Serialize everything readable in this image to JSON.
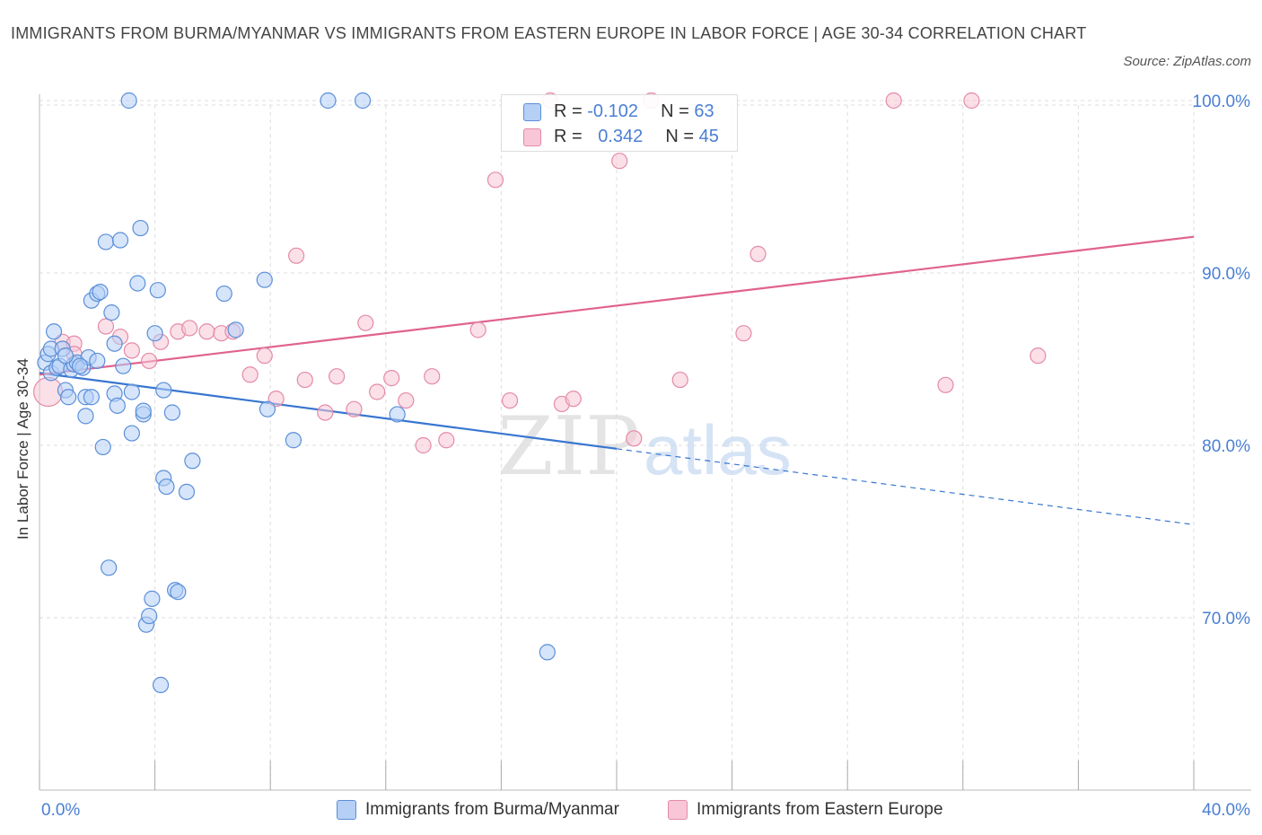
{
  "title": "IMMIGRANTS FROM BURMA/MYANMAR VS IMMIGRANTS FROM EASTERN EUROPE IN LABOR FORCE | AGE 30-34 CORRELATION CHART",
  "source": "Source: ZipAtlas.com",
  "watermark": {
    "zip": "ZIP",
    "atlas": "atlas"
  },
  "legend_top": [
    {
      "r_label": "R =",
      "r_value": "-0.102",
      "n_label": "N =",
      "n_value": "63"
    },
    {
      "r_label": "R =",
      "r_value": "0.342",
      "n_label": "N =",
      "n_value": "45"
    }
  ],
  "colors": {
    "blue_fill": "#b5cff5",
    "blue_stroke": "#5b8fd9",
    "blue_line": "#3876d0",
    "pink_fill": "#f8c6d6",
    "pink_stroke": "#e48aa8",
    "pink_line": "#e0628f",
    "axis_text": "#4a7fd4",
    "grid": "#dddddd"
  },
  "chart_data": {
    "type": "scatter",
    "title": "IMMIGRANTS FROM BURMA/MYANMAR VS IMMIGRANTS FROM EASTERN EUROPE IN LABOR FORCE | AGE 30-34 CORRELATION CHART",
    "xlabel": "",
    "ylabel": "In Labor Force | Age 30-34",
    "xlim": [
      0,
      40
    ],
    "ylim": [
      60,
      100
    ],
    "x_tick_labels": [
      "0.0%",
      "40.0%"
    ],
    "y_ticks": [
      70,
      80,
      90,
      100
    ],
    "y_tick_labels": [
      "70.0%",
      "80.0%",
      "90.0%",
      "100.0%"
    ],
    "grid": true,
    "legend_position": "bottom",
    "series": [
      {
        "name": "Immigrants from Burma/Myanmar",
        "r": -0.102,
        "n": 63,
        "trend": {
          "x0": 0,
          "y0": 84.2,
          "x1": 20,
          "y1": 79.8,
          "dash_to_x": 40,
          "dash_to_y": 75.4
        },
        "points": [
          [
            0.2,
            84.8
          ],
          [
            0.3,
            85.3
          ],
          [
            0.4,
            85.6
          ],
          [
            0.4,
            84.2
          ],
          [
            0.5,
            86.6
          ],
          [
            0.6,
            84.5
          ],
          [
            0.7,
            84.6
          ],
          [
            0.8,
            85.6
          ],
          [
            0.9,
            83.2
          ],
          [
            1.0,
            82.8
          ],
          [
            1.1,
            84.4
          ],
          [
            1.2,
            84.7
          ],
          [
            1.3,
            84.8
          ],
          [
            1.5,
            84.5
          ],
          [
            1.6,
            82.8
          ],
          [
            1.6,
            81.7
          ],
          [
            1.7,
            85.1
          ],
          [
            1.8,
            82.8
          ],
          [
            1.8,
            88.4
          ],
          [
            2.0,
            88.8
          ],
          [
            2.1,
            88.9
          ],
          [
            2.2,
            79.9
          ],
          [
            2.3,
            91.8
          ],
          [
            2.4,
            72.9
          ],
          [
            2.5,
            87.7
          ],
          [
            2.6,
            85.9
          ],
          [
            2.6,
            83.0
          ],
          [
            2.7,
            82.3
          ],
          [
            2.8,
            91.9
          ],
          [
            2.9,
            84.6
          ],
          [
            3.1,
            100.0
          ],
          [
            3.2,
            83.1
          ],
          [
            3.2,
            80.7
          ],
          [
            3.4,
            89.4
          ],
          [
            3.5,
            92.6
          ],
          [
            3.6,
            81.8
          ],
          [
            3.6,
            82.0
          ],
          [
            3.7,
            69.6
          ],
          [
            3.8,
            70.1
          ],
          [
            3.9,
            71.1
          ],
          [
            4.0,
            86.5
          ],
          [
            4.1,
            89.0
          ],
          [
            4.2,
            66.1
          ],
          [
            4.3,
            83.2
          ],
          [
            4.3,
            78.1
          ],
          [
            4.4,
            77.6
          ],
          [
            4.6,
            81.9
          ],
          [
            4.7,
            71.6
          ],
          [
            4.8,
            71.5
          ],
          [
            5.1,
            77.3
          ],
          [
            5.3,
            79.1
          ],
          [
            6.4,
            88.8
          ],
          [
            6.8,
            86.7
          ],
          [
            7.8,
            89.6
          ],
          [
            7.9,
            82.1
          ],
          [
            8.8,
            80.3
          ],
          [
            10.0,
            100.0
          ],
          [
            11.2,
            100.0
          ],
          [
            12.4,
            81.8
          ],
          [
            17.6,
            68.0
          ],
          [
            1.4,
            84.6
          ],
          [
            2.0,
            84.9
          ],
          [
            0.9,
            85.2
          ]
        ]
      },
      {
        "name": "Immigrants from Eastern Europe",
        "r": 0.342,
        "n": 45,
        "trend": {
          "x0": 0,
          "y0": 84.1,
          "x1": 40,
          "y1": 92.1
        },
        "points": [
          [
            0.3,
            83.1
          ],
          [
            0.8,
            86.0
          ],
          [
            1.2,
            85.9
          ],
          [
            1.2,
            85.3
          ],
          [
            2.3,
            86.9
          ],
          [
            2.8,
            86.3
          ],
          [
            3.2,
            85.5
          ],
          [
            3.8,
            84.9
          ],
          [
            4.2,
            86.0
          ],
          [
            4.8,
            86.6
          ],
          [
            5.2,
            86.8
          ],
          [
            5.8,
            86.6
          ],
          [
            6.3,
            86.5
          ],
          [
            6.7,
            86.6
          ],
          [
            7.3,
            84.1
          ],
          [
            7.8,
            85.2
          ],
          [
            8.2,
            82.7
          ],
          [
            8.9,
            91.0
          ],
          [
            9.2,
            83.8
          ],
          [
            9.9,
            81.9
          ],
          [
            10.3,
            84.0
          ],
          [
            10.9,
            82.1
          ],
          [
            11.3,
            87.1
          ],
          [
            11.7,
            83.1
          ],
          [
            12.2,
            83.9
          ],
          [
            12.7,
            82.6
          ],
          [
            13.3,
            80.0
          ],
          [
            13.6,
            84.0
          ],
          [
            14.1,
            80.3
          ],
          [
            15.2,
            86.7
          ],
          [
            15.8,
            95.4
          ],
          [
            16.3,
            82.6
          ],
          [
            17.7,
            100.0
          ],
          [
            18.1,
            82.4
          ],
          [
            18.5,
            82.7
          ],
          [
            20.1,
            96.5
          ],
          [
            20.6,
            80.4
          ],
          [
            21.2,
            100.0
          ],
          [
            22.2,
            83.8
          ],
          [
            24.4,
            86.5
          ],
          [
            24.9,
            91.1
          ],
          [
            29.6,
            100.0
          ],
          [
            31.4,
            83.5
          ],
          [
            32.3,
            100.0
          ],
          [
            34.6,
            85.2
          ]
        ]
      }
    ]
  }
}
